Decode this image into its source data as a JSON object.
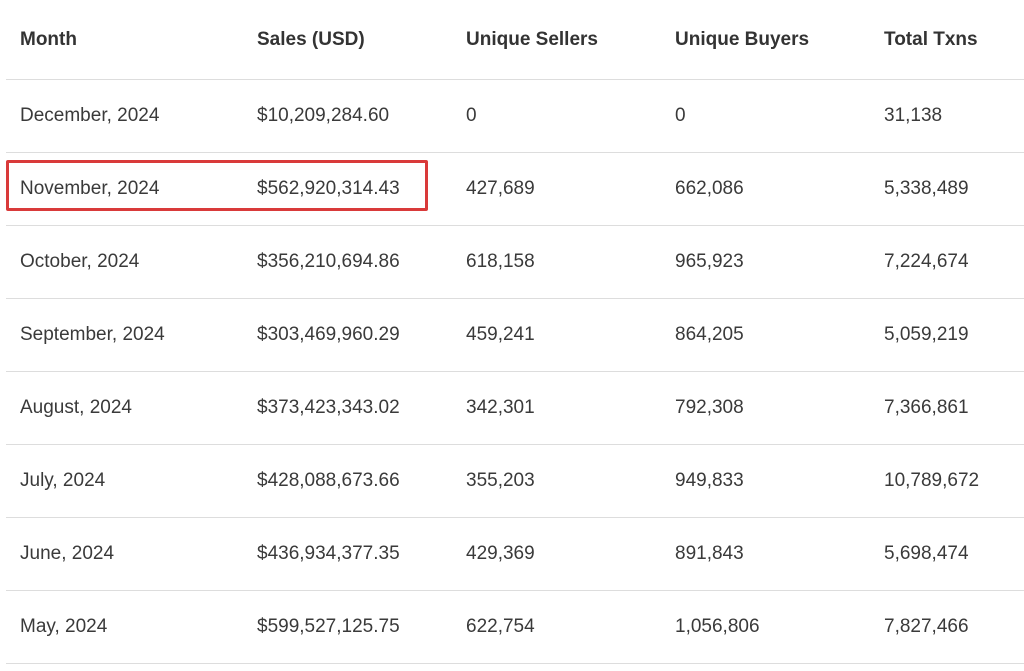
{
  "table": {
    "headers": [
      "Month",
      "Sales (USD)",
      "Unique Sellers",
      "Unique Buyers",
      "Total Txns"
    ],
    "rows": [
      [
        "December, 2024",
        "$10,209,284.60",
        "0",
        "0",
        "31,138"
      ],
      [
        "November, 2024",
        "$562,920,314.43",
        "427,689",
        "662,086",
        "5,338,489"
      ],
      [
        "October, 2024",
        "$356,210,694.86",
        "618,158",
        "965,923",
        "7,224,674"
      ],
      [
        "September, 2024",
        "$303,469,960.29",
        "459,241",
        "864,205",
        "5,059,219"
      ],
      [
        "August, 2024",
        "$373,423,343.02",
        "342,301",
        "792,308",
        "7,366,861"
      ],
      [
        "July, 2024",
        "$428,088,673.66",
        "355,203",
        "949,833",
        "10,789,672"
      ],
      [
        "June, 2024",
        "$436,934,377.35",
        "429,369",
        "891,843",
        "5,698,474"
      ],
      [
        "May, 2024",
        "$599,527,125.75",
        "622,754",
        "1,056,806",
        "7,827,466"
      ]
    ]
  },
  "highlight": {
    "row_index": 1,
    "color": "#d93a3a"
  }
}
